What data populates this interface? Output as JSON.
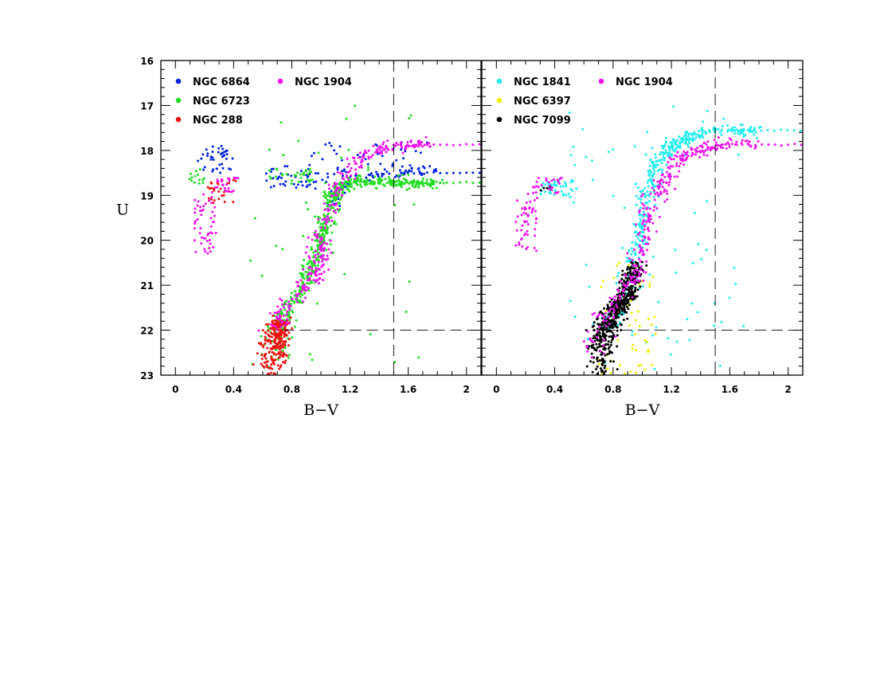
{
  "chart_data": [
    {
      "type": "scatter",
      "xlabel": "B−V",
      "ylabel": "U",
      "xlim": [
        -0.1,
        2.1
      ],
      "ylim": [
        23,
        16
      ],
      "xticks": [
        "0",
        "0.4",
        "0.8",
        "1.2",
        "1.6",
        "2"
      ],
      "yticks": [
        "16",
        "17",
        "18",
        "19",
        "20",
        "21",
        "22",
        "23"
      ],
      "reference_lines": {
        "vertical_bv": 1.5,
        "horizontal_u": 22
      },
      "legend_placement": "top-left",
      "series": [
        {
          "name": "NGC 6864",
          "color": "#0022dd",
          "hb_blue": {
            "x": [
              0.15,
              0.4
            ],
            "y": [
              17.9,
              18.5
            ],
            "n": 40
          },
          "hb_red": {
            "x": [
              0.62,
              1.05
            ],
            "y": [
              18.35,
              18.85
            ],
            "n": 45
          },
          "rgb": [
            [
              1.05,
              19.3
            ],
            [
              1.12,
              18.85
            ],
            [
              1.3,
              18.6
            ],
            [
              1.55,
              18.45
            ],
            [
              1.8,
              18.4
            ]
          ],
          "agb": {
            "x": [
              0.9,
              1.75
            ],
            "y": [
              17.8,
              18.6
            ],
            "n": 55
          },
          "rgb_level": {
            "u": 18.5,
            "from": 1.55,
            "to": 2.1
          }
        },
        {
          "name": "NGC 6723",
          "color": "#22dd22",
          "hb_blue": {
            "x": [
              0.08,
              0.2
            ],
            "y": [
              18.4,
              18.75
            ],
            "n": 14
          },
          "hb_red": {
            "x": [
              0.62,
              0.95
            ],
            "y": [
              18.4,
              18.75
            ],
            "n": 30
          },
          "rgb": [
            [
              0.68,
              23.0
            ],
            [
              0.7,
              22.0
            ],
            [
              0.75,
              21.6
            ],
            [
              0.88,
              21.0
            ],
            [
              0.97,
              20.3
            ],
            [
              1.02,
              19.7
            ],
            [
              1.08,
              19.0
            ],
            [
              1.2,
              18.7
            ],
            [
              1.5,
              18.7
            ],
            [
              1.8,
              18.75
            ]
          ],
          "rgb_level": {
            "u": 18.72,
            "from": 1.55,
            "to": 2.1
          },
          "n_main": 600,
          "n_field": 40
        },
        {
          "name": "NGC 288",
          "color": "#ee1111",
          "hb_blue": {
            "x": [
              0.22,
              0.42
            ],
            "y": [
              18.6,
              19.2
            ],
            "n": 30
          },
          "rgb": [
            [
              0.66,
              23.0
            ],
            [
              0.68,
              22.3
            ],
            [
              0.72,
              21.8
            ]
          ],
          "n_main": 240
        },
        {
          "name": "NGC 1904",
          "color": "#ee11ee",
          "hb_blue": {
            "x": [
              0.13,
              0.28
            ],
            "y": [
              18.9,
              20.3
            ],
            "n": 50
          },
          "hb_red": {
            "x": [
              0.25,
              0.45
            ],
            "y": [
              18.6,
              18.95
            ],
            "n": 25
          },
          "rgb": [
            [
              0.68,
              22.0
            ],
            [
              0.72,
              21.6
            ],
            [
              0.85,
              21.2
            ],
            [
              0.95,
              20.8
            ],
            [
              1.0,
              20.2
            ],
            [
              1.05,
              19.5
            ],
            [
              1.12,
              18.8
            ],
            [
              1.25,
              18.2
            ],
            [
              1.45,
              17.9
            ],
            [
              1.75,
              17.85
            ]
          ],
          "rgb_level": {
            "u": 17.87,
            "from": 1.55,
            "to": 2.1
          },
          "n_main": 320
        }
      ],
      "legend": [
        {
          "label": "NGC 6864",
          "color": "#0022dd"
        },
        {
          "label": "NGC 6723",
          "color": "#22dd22"
        },
        {
          "label": "NGC 288",
          "color": "#ee1111"
        },
        {
          "label": "NGC 1904",
          "color": "#ee11ee"
        }
      ]
    },
    {
      "type": "scatter",
      "xlabel": "B−V",
      "ylabel": "",
      "xlim": [
        -0.1,
        2.1
      ],
      "ylim": [
        23,
        16
      ],
      "xticks": [
        "0",
        "0.4",
        "0.8",
        "1.2",
        "1.6",
        "2"
      ],
      "reference_lines": {
        "vertical_bv": 1.5,
        "horizontal_u": 22
      },
      "legend_placement": "top-left",
      "series": [
        {
          "name": "NGC 1841",
          "color": "#22eeee",
          "hb_red": {
            "x": [
              0.3,
              0.55
            ],
            "y": [
              18.65,
              19.05
            ],
            "n": 45
          },
          "rgb": [
            [
              0.75,
              22.0
            ],
            [
              0.82,
              21.6
            ],
            [
              0.9,
              21.0
            ],
            [
              0.96,
              20.2
            ],
            [
              1.0,
              19.5
            ],
            [
              1.05,
              18.9
            ],
            [
              1.1,
              18.2
            ],
            [
              1.25,
              17.8
            ],
            [
              1.45,
              17.55
            ],
            [
              1.8,
              17.55
            ]
          ],
          "rgb_level": {
            "u": 17.55,
            "from": 1.5,
            "to": 2.1
          },
          "n_main": 420,
          "n_field": 70
        },
        {
          "name": "NGC 6397",
          "color": "#f0f000",
          "field": {
            "x": [
              0.7,
              1.1
            ],
            "y": [
              20.5,
              23.0
            ],
            "n": 70
          }
        },
        {
          "name": "NGC 7099",
          "color": "#000000",
          "hb_red": {
            "x": [
              0.3,
              0.38
            ],
            "y": [
              18.75,
              18.9
            ],
            "n": 5
          },
          "rgb": [
            [
              0.72,
              23.0
            ],
            [
              0.72,
              22.4
            ],
            [
              0.74,
              22.0
            ],
            [
              0.8,
              21.6
            ],
            [
              0.9,
              21.2
            ],
            [
              0.96,
              20.5
            ]
          ],
          "n_main": 520
        },
        {
          "name": "NGC 1904",
          "color": "#ee11ee",
          "hb_blue": {
            "x": [
              0.13,
              0.28
            ],
            "y": [
              18.9,
              20.3
            ],
            "n": 50
          },
          "hb_red": {
            "x": [
              0.25,
              0.45
            ],
            "y": [
              18.6,
              18.95
            ],
            "n": 25
          },
          "rgb": [
            [
              0.68,
              22.6
            ],
            [
              0.72,
              21.8
            ],
            [
              0.85,
              21.2
            ],
            [
              0.95,
              20.8
            ],
            [
              1.0,
              20.2
            ],
            [
              1.05,
              19.5
            ],
            [
              1.12,
              18.8
            ],
            [
              1.25,
              18.2
            ],
            [
              1.45,
              17.9
            ],
            [
              1.75,
              17.85
            ]
          ],
          "rgb_level": {
            "u": 17.87,
            "from": 1.55,
            "to": 2.1
          },
          "n_main": 320
        }
      ],
      "legend": [
        {
          "label": "NGC 1841",
          "color": "#22eeee"
        },
        {
          "label": "NGC 6397",
          "color": "#f0f000"
        },
        {
          "label": "NGC 7099",
          "color": "#000000"
        },
        {
          "label": "NGC 1904",
          "color": "#ee11ee"
        }
      ]
    }
  ]
}
